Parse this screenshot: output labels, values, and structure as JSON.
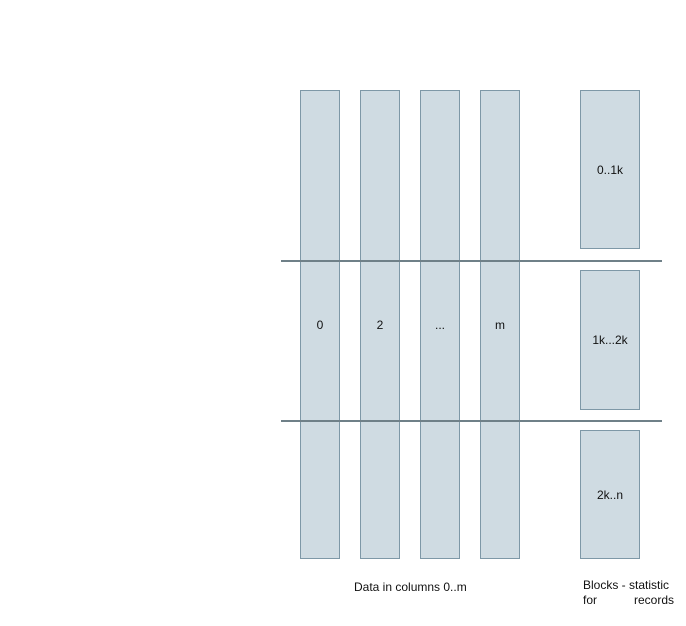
{
  "columns": [
    {
      "label": "0"
    },
    {
      "label": "2"
    },
    {
      "label": "..."
    },
    {
      "label": "m"
    }
  ],
  "blocks": [
    {
      "label": "0..1k"
    },
    {
      "label": "1k...2k"
    },
    {
      "label": "2k..n"
    }
  ],
  "captions": {
    "columns": "Data in columns 0..m",
    "blocks_line1": "Blocks - statistic for",
    "blocks_line2": "records"
  },
  "colors": {
    "fill": "#cfdbe2",
    "stroke": "#7e98a7",
    "divider": "#6f8088"
  }
}
